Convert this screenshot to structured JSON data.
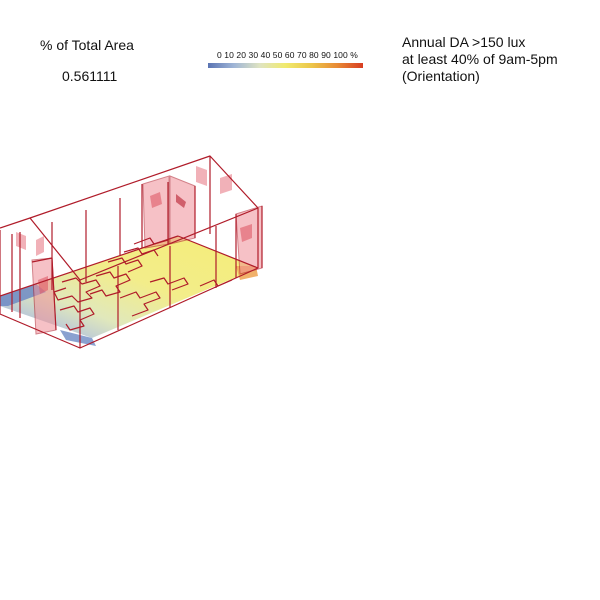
{
  "metric": {
    "title": "% of Total Area",
    "value": "0.561111"
  },
  "legend": {
    "ticks": "0 10 20 30 40 50 60 70 80 90 100 %",
    "gradient": [
      "#5a74b3",
      "#9fb5d6",
      "#dfe4c2",
      "#f0ea6e",
      "#ecc64a",
      "#e88a35",
      "#d83d22"
    ]
  },
  "study": {
    "line1": "Annual DA >150 lux",
    "line2": "at least 40% of 9am-5pm",
    "line3": "(Orientation)"
  },
  "colors": {
    "wireframe": "#b01c2a",
    "window_fill": "#f08f98",
    "floor_high": "#f4ec70",
    "floor_mid": "#dfe7b8",
    "floor_low": "#6d89c4"
  }
}
